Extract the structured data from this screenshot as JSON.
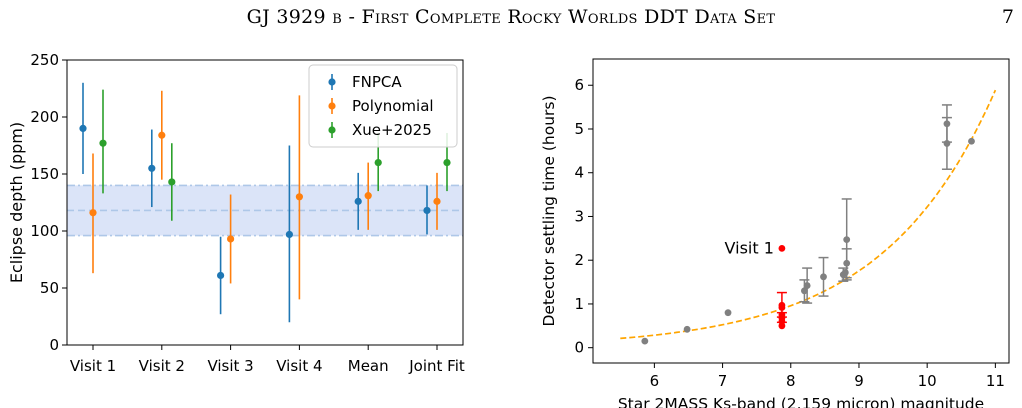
{
  "header": {
    "title": "GJ 3929 b - First Complete Rocky Worlds DDT Data Set",
    "page_number": "7"
  },
  "chart_data": [
    {
      "type": "scatter",
      "title": "",
      "xlabel": "",
      "ylabel": "Eclipse depth (ppm)",
      "categories": [
        "Visit 1",
        "Visit 2",
        "Visit 3",
        "Visit 4",
        "Mean",
        "Joint Fit"
      ],
      "ylim": [
        0,
        250
      ],
      "yticks": [
        "0",
        "50",
        "100",
        "150",
        "200",
        "250"
      ],
      "legend_position": "top-right",
      "series": [
        {
          "name": "FNPCA",
          "color": "#1f77b4",
          "values": [
            190,
            155,
            61,
            97,
            126,
            118
          ],
          "err_low": [
            150,
            121,
            27,
            20,
            101,
            97
          ],
          "err_high": [
            230,
            189,
            95,
            175,
            151,
            140
          ]
        },
        {
          "name": "Polynomial",
          "color": "#ff7f0e",
          "values": [
            116,
            184,
            93,
            130,
            131,
            126
          ],
          "err_low": [
            63,
            145,
            54,
            40,
            101,
            101
          ],
          "err_high": [
            168,
            223,
            132,
            219,
            160,
            151
          ]
        },
        {
          "name": "Xue+2025",
          "color": "#2ca02c",
          "values": [
            177,
            143,
            0,
            0,
            160,
            160
          ],
          "err_low": [
            133,
            109,
            0,
            0,
            135,
            135
          ],
          "err_high": [
            224,
            177,
            0,
            0,
            186,
            186
          ],
          "present": [
            true,
            true,
            false,
            false,
            true,
            true
          ]
        }
      ],
      "band": {
        "center": 118,
        "low": 96,
        "high": 140,
        "color": "#aec7e8"
      }
    },
    {
      "type": "scatter",
      "title": "",
      "xlabel": "Star 2MASS Ks-band (2.159 micron) magnitude",
      "ylabel": "Detector settling time (hours)",
      "xlim": [
        5.1,
        11.2
      ],
      "ylim": [
        -0.35,
        6.6
      ],
      "xticks": [
        6,
        7,
        8,
        9,
        10,
        11
      ],
      "yticks": [
        0,
        1,
        2,
        3,
        4,
        5,
        6
      ],
      "annotation": "Visit 1",
      "grey_points": [
        {
          "x": 5.86,
          "y": 0.15
        },
        {
          "x": 6.48,
          "y": 0.42
        },
        {
          "x": 7.08,
          "y": 0.8
        },
        {
          "x": 8.2,
          "y": 1.3,
          "lo": 1.05,
          "hi": 1.55
        },
        {
          "x": 8.24,
          "y": 1.42,
          "lo": 1.02,
          "hi": 1.82
        },
        {
          "x": 8.48,
          "y": 1.62,
          "lo": 1.18,
          "hi": 2.06
        },
        {
          "x": 8.77,
          "y": 1.67,
          "lo": 1.52,
          "hi": 1.82
        },
        {
          "x": 8.8,
          "y": 1.72
        },
        {
          "x": 8.82,
          "y": 1.93,
          "lo": 1.6,
          "hi": 2.26
        },
        {
          "x": 8.82,
          "y": 2.47,
          "lo": 1.55,
          "hi": 3.4
        },
        {
          "x": 10.29,
          "y": 5.12,
          "lo": 4.7,
          "hi": 5.55
        },
        {
          "x": 10.29,
          "y": 4.67,
          "lo": 4.08,
          "hi": 5.26
        },
        {
          "x": 10.65,
          "y": 4.72
        }
      ],
      "red_points": [
        {
          "x": 7.87,
          "y": 2.27
        },
        {
          "x": 7.87,
          "y": 0.97,
          "lo": 0.7,
          "hi": 1.26
        },
        {
          "x": 7.87,
          "y": 0.92
        },
        {
          "x": 7.87,
          "y": 0.75
        },
        {
          "x": 7.87,
          "y": 0.68,
          "lo": 0.58,
          "hi": 0.8
        },
        {
          "x": 7.87,
          "y": 0.6
        },
        {
          "x": 7.87,
          "y": 0.5
        }
      ],
      "fit_curve": {
        "type": "exponential",
        "a": 0.21165,
        "b": 0.6047,
        "x0": 5.5,
        "x1": 11.0,
        "color": "#ffa500"
      }
    }
  ]
}
